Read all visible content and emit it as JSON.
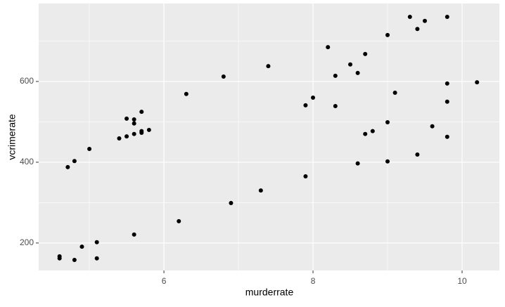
{
  "chart_data": {
    "type": "scatter",
    "x_label": "murderrate",
    "y_label": "vcrimerate",
    "x": [
      4.71,
      4.8,
      5.0,
      4.6,
      4.6,
      4.8,
      4.9,
      5.1,
      5.1,
      5.5,
      5.6,
      5.7,
      5.6,
      5.4,
      5.5,
      5.6,
      5.7,
      5.7,
      5.8,
      5.6,
      6.2,
      6.3,
      6.8,
      6.9,
      7.3,
      7.4,
      7.9,
      7.9,
      8.0,
      8.2,
      8.3,
      8.3,
      8.5,
      8.6,
      8.6,
      8.7,
      8.7,
      8.8,
      9.0,
      9.0,
      9.0,
      9.1,
      9.3,
      9.4,
      9.5,
      9.4,
      9.6,
      9.8,
      9.8,
      9.8,
      9.8,
      10.2
    ],
    "values": [
      388,
      403,
      433,
      167,
      162,
      158,
      191,
      202,
      162,
      508,
      506,
      525,
      496,
      459,
      464,
      470,
      477,
      473,
      480,
      221,
      254,
      569,
      612,
      299,
      330,
      638,
      365,
      541,
      560,
      685,
      614,
      539,
      642,
      621,
      397,
      668,
      470,
      477,
      715,
      499,
      402,
      572,
      760,
      730,
      750,
      419,
      489,
      760,
      595,
      550,
      463,
      598
    ],
    "color": "#000000",
    "xlim": [
      4.32,
      10.5
    ],
    "ylim": [
      132,
      793
    ],
    "xticks": [
      6,
      8,
      10
    ],
    "yticks": [
      200,
      400,
      600
    ],
    "minor_xticks": [
      5,
      7,
      9
    ],
    "minor_yticks": [
      300,
      500,
      700
    ],
    "grid": true
  }
}
